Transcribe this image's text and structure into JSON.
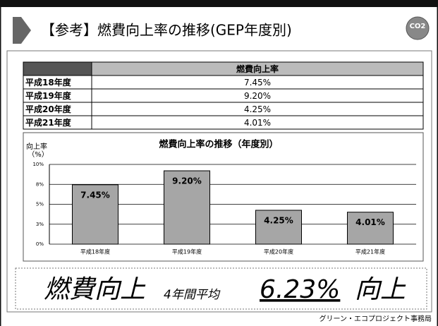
{
  "title": "【参考】燃費向上率の推移(GEP年度別)",
  "logo": "CO2",
  "table": {
    "header": "燃費向上率",
    "rows": [
      [
        "平成18年度",
        "7.45%"
      ],
      [
        "平成19年度",
        "9.20%"
      ],
      [
        "平成20年度",
        "4.25%"
      ],
      [
        "平成21年度",
        "4.01%"
      ]
    ]
  },
  "chart_data": {
    "type": "bar",
    "title": "燃費向上率の推移（年度別）",
    "y_label": [
      "向上率",
      "（%）"
    ],
    "categories": [
      "平成18年度",
      "平成19年度",
      "平成20年度",
      "平成21年度"
    ],
    "values": [
      7.45,
      9.2,
      4.25,
      4.01
    ],
    "value_labels": [
      "7.45%",
      "9.20%",
      "4.25%",
      "4.01%"
    ],
    "color": "#a6a6a6",
    "ylim": [
      0,
      10
    ],
    "yticks": [
      {
        "value": 0,
        "label": "0%"
      },
      {
        "value": 2.5,
        "label": "3%"
      },
      {
        "value": 5,
        "label": "5%"
      },
      {
        "value": 7.5,
        "label": "8%"
      },
      {
        "value": 10,
        "label": "10%"
      }
    ],
    "grid": true
  },
  "banner": {
    "lead": "燃費向上",
    "period": "4年間平均",
    "average": "6.23%",
    "suffix": "向上"
  },
  "footer": "グリーン・エコプロジェクト事務局"
}
